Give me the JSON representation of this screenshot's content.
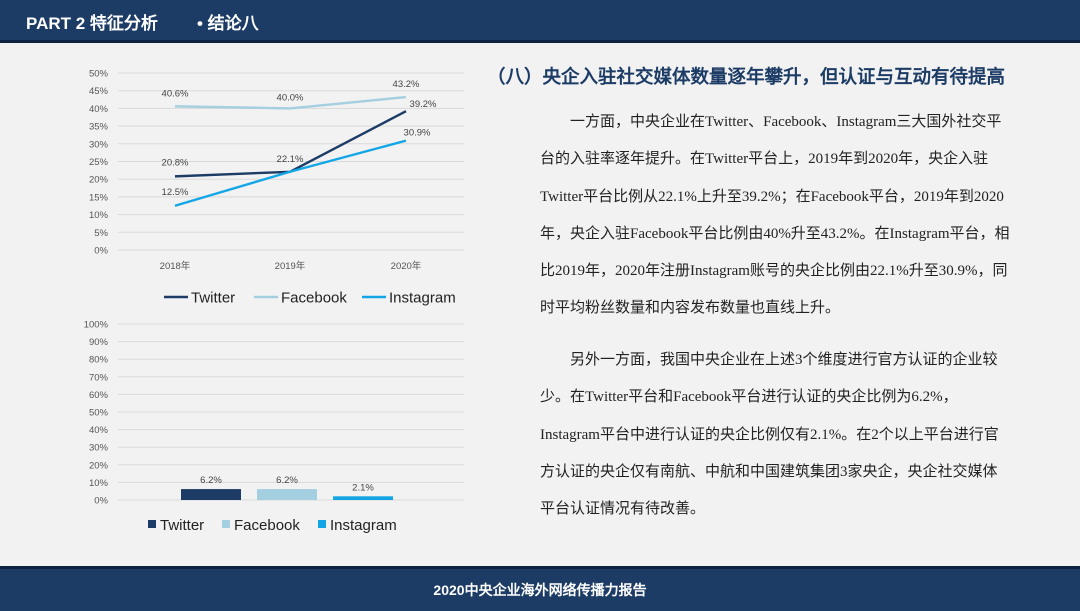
{
  "header": {
    "part": "PART 2 特征分析",
    "section": "• 结论八"
  },
  "footer": "2020中央企业海外网络传播力报告",
  "heading": "（八）央企入驻社交媒体数量逐年攀升，但认证与互动有待提高",
  "paragraphs": [
    "一方面，中央企业在Twitter、Facebook、Instagram三大国外社交平台的入驻率逐年提升。在Twitter平台上，2019年到2020年，央企入驻Twitter平台比例从22.1%上升至39.2%；在Facebook平台，2019年到2020年，央企入驻Facebook平台比例由40%升至43.2%。在Instagram平台，相比2019年，2020年注册Instagram账号的央企比例由22.1%升至30.9%，同时平均粉丝数量和内容发布数量也直线上升。",
    "另外一方面，我国中央企业在上述3个维度进行官方认证的企业较少。在Twitter平台和Facebook平台进行认证的央企比例为6.2%，Instagram平台中进行认证的央企比例仅有2.1%。在2个以上平台进行官方认证的央企仅有南航、中航和中国建筑集团3家央企，央企社交媒体平台认证情况有待改善。"
  ],
  "chart_data": [
    {
      "type": "line",
      "categories": [
        "2018年",
        "2019年",
        "2020年"
      ],
      "ylim": [
        0,
        50
      ],
      "yticks": [
        "0%",
        "5%",
        "10%",
        "15%",
        "20%",
        "25%",
        "30%",
        "35%",
        "40%",
        "45%",
        "50%"
      ],
      "legend_position": "bottom",
      "series": [
        {
          "name": "Twitter",
          "values": [
            20.8,
            22.1,
            39.2
          ],
          "labels": [
            "20.8%",
            "22.1%",
            "39.2%"
          ],
          "color": "#1c3c66"
        },
        {
          "name": "Facebook",
          "values": [
            40.6,
            40.0,
            43.2
          ],
          "labels": [
            "40.6%",
            "40.0%",
            "43.2%"
          ],
          "color": "#a3cfe0"
        },
        {
          "name": "Instagram",
          "values": [
            12.5,
            22.1,
            30.9
          ],
          "labels": [
            "12.5%",
            "",
            "30.9%"
          ],
          "color": "#12a6e6"
        }
      ]
    },
    {
      "type": "bar",
      "ylim": [
        0,
        100
      ],
      "yticks": [
        "0%",
        "10%",
        "20%",
        "30%",
        "40%",
        "50%",
        "60%",
        "70%",
        "80%",
        "90%",
        "100%"
      ],
      "legend_position": "bottom",
      "series": [
        {
          "name": "Twitter",
          "value": 6.2,
          "label": "6.2%",
          "color": "#1c3c66"
        },
        {
          "name": "Facebook",
          "value": 6.2,
          "label": "6.2%",
          "color": "#a3cfe0"
        },
        {
          "name": "Instagram",
          "value": 2.1,
          "label": "2.1%",
          "color": "#12a6e6"
        }
      ]
    }
  ]
}
